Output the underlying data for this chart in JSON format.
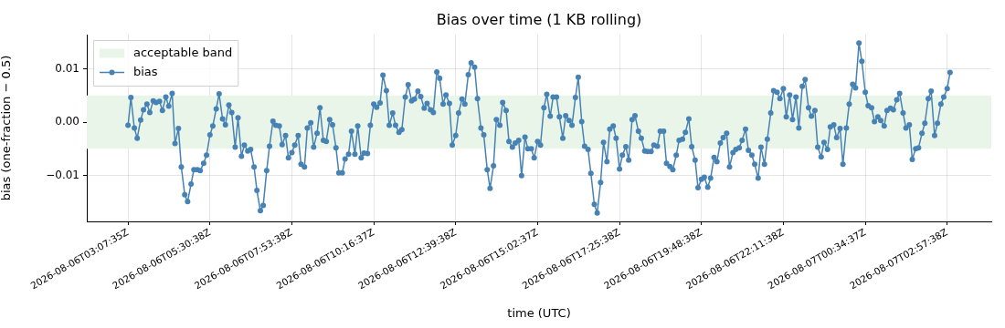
{
  "chart_data": {
    "type": "line",
    "title": "Bias over time (1 KB rolling)",
    "xlabel": "time (UTC)",
    "ylabel": "bias (one-fraction − 0.5)",
    "xlim": [
      "2026-08-06T01:56",
      "2026-08-07T04:15"
    ],
    "ylim": [
      -0.0186,
      0.0164
    ],
    "xticks": [
      {
        "value": "2026-08-06T03:08",
        "label": "2026-08-06T03:07:35Z"
      },
      {
        "value": "2026-08-06T05:31",
        "label": "2026-08-06T05:30:38Z"
      },
      {
        "value": "2026-08-06T07:54",
        "label": "2026-08-06T07:53:38Z"
      },
      {
        "value": "2026-08-06T10:17",
        "label": "2026-08-06T10:16:37Z"
      },
      {
        "value": "2026-08-06T12:40",
        "label": "2026-08-06T12:39:38Z"
      },
      {
        "value": "2026-08-06T15:03",
        "label": "2026-08-06T15:02:37Z"
      },
      {
        "value": "2026-08-06T17:26",
        "label": "2026-08-06T17:25:38Z"
      },
      {
        "value": "2026-08-06T19:49",
        "label": "2026-08-06T19:48:38Z"
      },
      {
        "value": "2026-08-06T22:12",
        "label": "2026-08-06T22:11:38Z"
      },
      {
        "value": "2026-08-07T00:35",
        "label": "2026-08-07T00:34:37Z"
      },
      {
        "value": "2026-08-07T02:58",
        "label": "2026-08-07T02:57:38Z"
      }
    ],
    "yticks": [
      {
        "value": -0.01,
        "label": "−0.01"
      },
      {
        "value": 0,
        "label": "0.00"
      },
      {
        "value": 0.01,
        "label": "0.01"
      }
    ],
    "bands": [
      {
        "axis": "y",
        "from": -0.005,
        "to": 0.005,
        "label": "acceptable band",
        "color": "#eaf5ea"
      }
    ],
    "grid": true,
    "legend": "top left",
    "marker": "circle",
    "line_style": "solid",
    "series": [
      {
        "name": "bias",
        "color": "#4682b4",
        "x": [
          "2026-08-06T03:08",
          "2026-08-06T03:13",
          "2026-08-06T03:19",
          "2026-08-06T03:24",
          "2026-08-06T03:30",
          "2026-08-06T03:35",
          "2026-08-06T03:41",
          "2026-08-06T03:46",
          "2026-08-06T03:52",
          "2026-08-06T03:57",
          "2026-08-06T04:03",
          "2026-08-06T04:08",
          "2026-08-06T04:14",
          "2026-08-06T04:19",
          "2026-08-06T04:25",
          "2026-08-06T04:30",
          "2026-08-06T04:36",
          "2026-08-06T04:41",
          "2026-08-06T04:47",
          "2026-08-06T04:52",
          "2026-08-06T04:58",
          "2026-08-06T05:03",
          "2026-08-06T05:09",
          "2026-08-06T05:14",
          "2026-08-06T05:20",
          "2026-08-06T05:25",
          "2026-08-06T05:31",
          "2026-08-06T05:36",
          "2026-08-06T05:42",
          "2026-08-06T05:47",
          "2026-08-06T05:53",
          "2026-08-06T05:58",
          "2026-08-06T06:04",
          "2026-08-06T06:09",
          "2026-08-06T06:15",
          "2026-08-06T06:20",
          "2026-08-06T06:26",
          "2026-08-06T06:31",
          "2026-08-06T06:37",
          "2026-08-06T06:42",
          "2026-08-06T06:48",
          "2026-08-06T06:53",
          "2026-08-06T06:59",
          "2026-08-06T07:04",
          "2026-08-06T07:10",
          "2026-08-06T07:15",
          "2026-08-06T07:21",
          "2026-08-06T07:26",
          "2026-08-06T07:32",
          "2026-08-06T07:37",
          "2026-08-06T07:43",
          "2026-08-06T07:48",
          "2026-08-06T07:54",
          "2026-08-06T07:59",
          "2026-08-06T08:05",
          "2026-08-06T08:10",
          "2026-08-06T08:16",
          "2026-08-06T08:21",
          "2026-08-06T08:27",
          "2026-08-06T08:32",
          "2026-08-06T08:38",
          "2026-08-06T08:43",
          "2026-08-06T08:49",
          "2026-08-06T08:54",
          "2026-08-06T09:00",
          "2026-08-06T09:05",
          "2026-08-06T09:11",
          "2026-08-06T09:16",
          "2026-08-06T09:22",
          "2026-08-06T09:27",
          "2026-08-06T09:33",
          "2026-08-06T09:38",
          "2026-08-06T09:44",
          "2026-08-06T09:49",
          "2026-08-06T09:55",
          "2026-08-06T10:00",
          "2026-08-06T10:06",
          "2026-08-06T10:11",
          "2026-08-06T10:17",
          "2026-08-06T10:22",
          "2026-08-06T10:28",
          "2026-08-06T10:33",
          "2026-08-06T10:39",
          "2026-08-06T10:44",
          "2026-08-06T10:50",
          "2026-08-06T10:55",
          "2026-08-06T11:01",
          "2026-08-06T11:06",
          "2026-08-06T11:12",
          "2026-08-06T11:17",
          "2026-08-06T11:23",
          "2026-08-06T11:28",
          "2026-08-06T11:34",
          "2026-08-06T11:39",
          "2026-08-06T11:45",
          "2026-08-06T11:50",
          "2026-08-06T11:56",
          "2026-08-06T12:01",
          "2026-08-06T12:07",
          "2026-08-06T12:12",
          "2026-08-06T12:18",
          "2026-08-06T12:23",
          "2026-08-06T12:29",
          "2026-08-06T12:34",
          "2026-08-06T12:40",
          "2026-08-06T12:45",
          "2026-08-06T12:51",
          "2026-08-06T12:56",
          "2026-08-06T13:02",
          "2026-08-06T13:07",
          "2026-08-06T13:13",
          "2026-08-06T13:18",
          "2026-08-06T13:24",
          "2026-08-06T13:29",
          "2026-08-06T13:35",
          "2026-08-06T13:40",
          "2026-08-06T13:46",
          "2026-08-06T13:51",
          "2026-08-06T13:57",
          "2026-08-06T14:02",
          "2026-08-06T14:08",
          "2026-08-06T14:13",
          "2026-08-06T14:19",
          "2026-08-06T14:24",
          "2026-08-06T14:30",
          "2026-08-06T14:35",
          "2026-08-06T14:41",
          "2026-08-06T14:46",
          "2026-08-06T14:52",
          "2026-08-06T14:57",
          "2026-08-06T15:03",
          "2026-08-06T15:08",
          "2026-08-06T15:14",
          "2026-08-06T15:19",
          "2026-08-06T15:25",
          "2026-08-06T15:30",
          "2026-08-06T15:36",
          "2026-08-06T15:41",
          "2026-08-06T15:47",
          "2026-08-06T15:52",
          "2026-08-06T15:58",
          "2026-08-06T16:03",
          "2026-08-06T16:09",
          "2026-08-06T16:14",
          "2026-08-06T16:20",
          "2026-08-06T16:25",
          "2026-08-06T16:31",
          "2026-08-06T16:36",
          "2026-08-06T16:42",
          "2026-08-06T16:47",
          "2026-08-06T16:53",
          "2026-08-06T16:58",
          "2026-08-06T17:04",
          "2026-08-06T17:09",
          "2026-08-06T17:15",
          "2026-08-06T17:20",
          "2026-08-06T17:26",
          "2026-08-06T17:31",
          "2026-08-06T17:37",
          "2026-08-06T17:42",
          "2026-08-06T17:48",
          "2026-08-06T17:53",
          "2026-08-06T17:59",
          "2026-08-06T18:04",
          "2026-08-06T18:10",
          "2026-08-06T18:15",
          "2026-08-06T18:21",
          "2026-08-06T18:26",
          "2026-08-06T18:32",
          "2026-08-06T18:37",
          "2026-08-06T18:43",
          "2026-08-06T18:48",
          "2026-08-06T18:54",
          "2026-08-06T18:59",
          "2026-08-06T19:05",
          "2026-08-06T19:10",
          "2026-08-06T19:16",
          "2026-08-06T19:21",
          "2026-08-06T19:27",
          "2026-08-06T19:32",
          "2026-08-06T19:38",
          "2026-08-06T19:43",
          "2026-08-06T19:49",
          "2026-08-06T19:54",
          "2026-08-06T20:00",
          "2026-08-06T20:05",
          "2026-08-06T20:11",
          "2026-08-06T20:16",
          "2026-08-06T20:22",
          "2026-08-06T20:27",
          "2026-08-06T20:33",
          "2026-08-06T20:38",
          "2026-08-06T20:44",
          "2026-08-06T20:49",
          "2026-08-06T20:55",
          "2026-08-06T21:00",
          "2026-08-06T21:06",
          "2026-08-06T21:11",
          "2026-08-06T21:17",
          "2026-08-06T21:22",
          "2026-08-06T21:28",
          "2026-08-06T21:33",
          "2026-08-06T21:39",
          "2026-08-06T21:44",
          "2026-08-06T21:50",
          "2026-08-06T21:55",
          "2026-08-06T22:01",
          "2026-08-06T22:06",
          "2026-08-06T22:12",
          "2026-08-06T22:17",
          "2026-08-06T22:23",
          "2026-08-06T22:28",
          "2026-08-06T22:34",
          "2026-08-06T22:39",
          "2026-08-06T22:45",
          "2026-08-06T22:50",
          "2026-08-06T22:56",
          "2026-08-06T23:01",
          "2026-08-06T23:07",
          "2026-08-06T23:12",
          "2026-08-06T23:18",
          "2026-08-06T23:23",
          "2026-08-06T23:29",
          "2026-08-06T23:34",
          "2026-08-06T23:40",
          "2026-08-06T23:45",
          "2026-08-06T23:51",
          "2026-08-06T23:56",
          "2026-08-07T00:02",
          "2026-08-07T00:07",
          "2026-08-07T00:13",
          "2026-08-07T00:18",
          "2026-08-07T00:24",
          "2026-08-07T00:29",
          "2026-08-07T00:35",
          "2026-08-07T00:40",
          "2026-08-07T00:46",
          "2026-08-07T00:51",
          "2026-08-07T00:57",
          "2026-08-07T01:02",
          "2026-08-07T01:08",
          "2026-08-07T01:13",
          "2026-08-07T01:19",
          "2026-08-07T01:24",
          "2026-08-07T01:30",
          "2026-08-07T01:35",
          "2026-08-07T01:41",
          "2026-08-07T01:46",
          "2026-08-07T01:52",
          "2026-08-07T01:57",
          "2026-08-07T02:03",
          "2026-08-07T02:08",
          "2026-08-07T02:14",
          "2026-08-07T02:19",
          "2026-08-07T02:25",
          "2026-08-07T02:30",
          "2026-08-07T02:36",
          "2026-08-07T02:41",
          "2026-08-07T02:47",
          "2026-08-07T02:52",
          "2026-08-07T02:58",
          "2026-08-07T03:03"
        ],
        "values": [
          -0.0006,
          0.0046,
          -0.0011,
          -0.003,
          0.0004,
          0.0023,
          0.0034,
          0.0018,
          0.004,
          0.0037,
          0.0039,
          0.0022,
          0.0047,
          0.003,
          0.0054,
          -0.004,
          -0.0012,
          -0.0084,
          -0.0136,
          -0.0149,
          -0.0116,
          -0.0089,
          -0.0089,
          -0.0091,
          -0.0077,
          -0.0062,
          -0.0024,
          -0.0007,
          0.0025,
          0.0053,
          0.0006,
          -0.0005,
          0.0032,
          0.0018,
          -0.0047,
          0.0008,
          -0.0064,
          -0.0043,
          -0.0054,
          -0.0051,
          -0.0084,
          -0.0128,
          -0.0166,
          -0.0156,
          -0.0091,
          -0.0045,
          0.0002,
          -0.0006,
          -0.0007,
          -0.0042,
          -0.0025,
          -0.0067,
          -0.0057,
          -0.0043,
          -0.0025,
          -0.0079,
          -0.0084,
          -0.0011,
          -0.0001,
          -0.0047,
          -0.0021,
          0.0027,
          -0.0034,
          -0.0036,
          0.0005,
          -0.0005,
          -0.0048,
          -0.0095,
          -0.0095,
          -0.0069,
          -0.006,
          -0.0017,
          -0.006,
          -0.0007,
          -0.0067,
          -0.0058,
          -0.0059,
          -0.0006,
          0.0034,
          0.0028,
          0.0036,
          0.0088,
          0.0059,
          -0.0006,
          0.0017,
          -0.0006,
          -0.0019,
          -0.0014,
          0.0047,
          0.007,
          0.004,
          0.0043,
          0.0058,
          0.0048,
          0.0026,
          0.0035,
          0.0023,
          0.0018,
          0.0094,
          0.0082,
          0.0034,
          0.0051,
          0.0035,
          -0.0043,
          -0.0025,
          0.0017,
          0.0043,
          0.0034,
          0.0089,
          0.0111,
          0.0103,
          0.0044,
          -0.0011,
          -0.0024,
          -0.0089,
          -0.0124,
          -0.0082,
          0.0005,
          -0.0006,
          0.0037,
          0.0022,
          -0.0036,
          -0.0047,
          -0.0039,
          -0.0034,
          -0.01,
          -0.0028,
          -0.005,
          -0.005,
          -0.0067,
          -0.0036,
          -0.0043,
          0.0027,
          0.0052,
          0.0011,
          0.0047,
          0.0047,
          0.001,
          -0.003,
          0.0012,
          0.0003,
          -0.0006,
          0.0046,
          0.0084,
          0.0001,
          -0.0045,
          -0.0051,
          -0.0096,
          -0.0154,
          -0.017,
          -0.0113,
          -0.0038,
          -0.0074,
          -0.0013,
          -0.0007,
          -0.003,
          -0.0088,
          -0.0062,
          -0.0046,
          -0.0071,
          0.0005,
          0.0012,
          -0.0017,
          -0.003,
          -0.0054,
          -0.0055,
          -0.0055,
          -0.0043,
          -0.0045,
          -0.0017,
          -0.0017,
          -0.0077,
          -0.0083,
          -0.0089,
          -0.0062,
          -0.0034,
          -0.0032,
          -0.0019,
          0.0006,
          -0.0046,
          -0.0071,
          -0.0123,
          -0.0107,
          -0.0103,
          -0.0122,
          -0.0105,
          -0.0066,
          -0.0074,
          -0.0039,
          -0.0029,
          -0.0021,
          -0.0084,
          -0.0057,
          -0.0051,
          -0.0048,
          -0.0034,
          -0.0013,
          -0.0053,
          -0.0062,
          -0.0079,
          -0.0105,
          -0.0047,
          -0.0079,
          -0.0032,
          0.0017,
          0.0059,
          0.0056,
          0.0044,
          0.0063,
          0.001,
          0.0051,
          0.0005,
          0.0047,
          -0.0011,
          0.0067,
          0.008,
          0.0027,
          0.0011,
          0.0022,
          -0.0047,
          -0.0065,
          -0.0038,
          -0.0051,
          -0.0009,
          -0.0005,
          -0.0029,
          -0.0012,
          -0.0079,
          -0.0011,
          0.0034,
          0.0071,
          0.0064,
          0.0148,
          0.0114,
          0.0056,
          0.0031,
          0.0027,
          0.0001,
          0.001,
          0.0003,
          -0.0007,
          0.0022,
          0.0026,
          0.0023,
          0.0042,
          0.0054,
          0.0017,
          -0.0011,
          -0.0005,
          -0.007,
          -0.005,
          -0.0048,
          -0.0021,
          -0.0002,
          0.0044,
          0.0058,
          -0.0025,
          -0.0002,
          0.0034,
          0.0047,
          0.0063,
          0.0093
        ]
      }
    ]
  }
}
